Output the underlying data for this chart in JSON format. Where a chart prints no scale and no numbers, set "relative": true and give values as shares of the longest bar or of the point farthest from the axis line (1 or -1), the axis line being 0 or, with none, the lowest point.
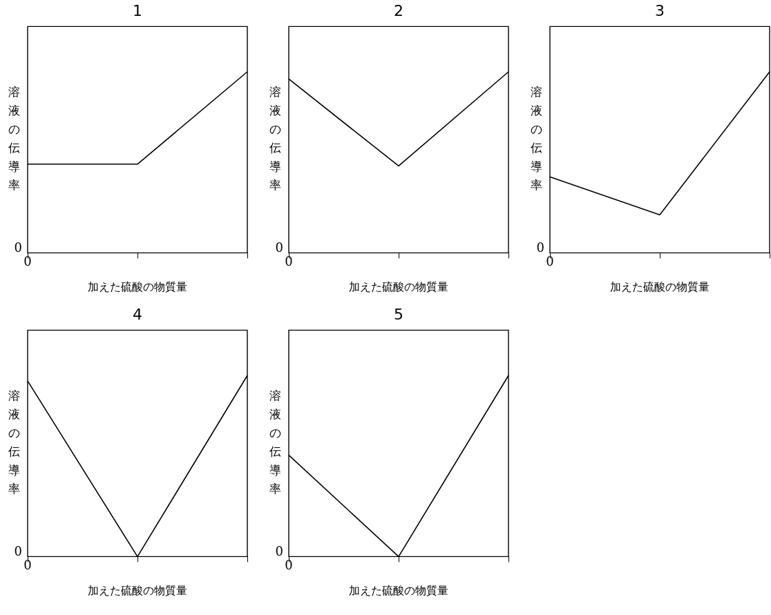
{
  "chart_data": [
    {
      "type": "line",
      "title": "1",
      "xlabel": "加えた硫酸の物質量",
      "ylabel": "溶液の伝導率",
      "relative": true,
      "categories": [
        null,
        null,
        null
      ],
      "values": [
        0.49,
        0.49,
        1
      ],
      "color": "#000000",
      "annotations": [
        "0",
        "0"
      ],
      "marker": "none",
      "line_style": "solid"
    },
    {
      "type": "line",
      "title": "2",
      "xlabel": "加えた硫酸の物質量",
      "ylabel": "溶液の伝導率",
      "relative": true,
      "categories": [
        null,
        null,
        null
      ],
      "values": [
        0.96,
        0.48,
        1
      ],
      "color": "#000000",
      "annotations": [
        "0",
        "0"
      ],
      "marker": "none",
      "line_style": "solid"
    },
    {
      "type": "line",
      "title": "3",
      "xlabel": "加えた硫酸の物質量",
      "ylabel": "溶液の伝導率",
      "relative": true,
      "categories": [
        null,
        null,
        null
      ],
      "values": [
        0.42,
        0.21,
        1
      ],
      "color": "#000000",
      "annotations": [
        "0",
        "0"
      ],
      "marker": "none",
      "line_style": "solid"
    },
    {
      "type": "line",
      "title": "4",
      "xlabel": "加えた硫酸の物質量",
      "ylabel": "溶液の伝導率",
      "relative": true,
      "categories": [
        null,
        null,
        null
      ],
      "values": [
        0.97,
        0,
        1
      ],
      "color": "#000000",
      "annotations": [
        "0",
        "0"
      ],
      "marker": "none",
      "line_style": "solid"
    },
    {
      "type": "line",
      "title": "5",
      "xlabel": "加えた硫酸の物質量",
      "ylabel": "溶液の伝導率",
      "relative": true,
      "categories": [
        null,
        null,
        null
      ],
      "values": [
        0.56,
        0,
        1
      ],
      "color": "#000000",
      "annotations": [
        "0",
        "0"
      ],
      "marker": "none",
      "line_style": "solid"
    }
  ]
}
